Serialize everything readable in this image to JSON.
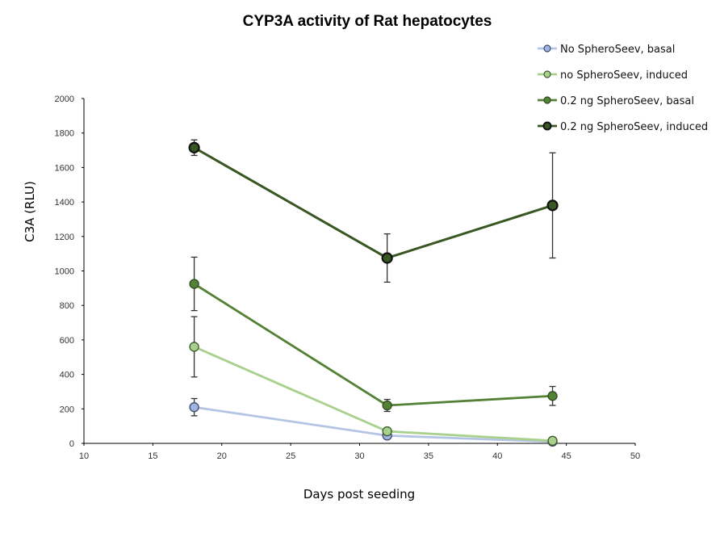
{
  "chart_data": {
    "type": "line",
    "title": "CYP3A activity of Rat hepatocytes",
    "xlabel": "Days post seeding",
    "ylabel": "C3A (RLU)",
    "xlim": [
      10,
      50
    ],
    "ylim": [
      0,
      2000
    ],
    "xticks": [
      10,
      15,
      20,
      25,
      30,
      35,
      40,
      45,
      50
    ],
    "yticks": [
      0,
      200,
      400,
      600,
      800,
      1000,
      1200,
      1400,
      1600,
      1800,
      2000
    ],
    "grid": false,
    "legend_position": "top-right",
    "series": [
      {
        "name": "No SpheroSeev, basal",
        "color": "#b4c4e4",
        "marker_fill": "#9fb4e0",
        "marker_stroke": "#3b4a6b",
        "x": [
          18,
          32,
          44
        ],
        "y": [
          210,
          45,
          10
        ],
        "error": [
          50,
          0,
          0
        ]
      },
      {
        "name": "no SpheroSeev, induced",
        "color": "#a9d18e",
        "marker_fill": "#a9d18e",
        "marker_stroke": "#3a5a2a",
        "x": [
          18,
          32,
          44
        ],
        "y": [
          560,
          70,
          15
        ],
        "error": [
          175,
          0,
          0
        ]
      },
      {
        "name": "0.2 ng SpheroSeev, basal",
        "color": "#538135",
        "marker_fill": "#538135",
        "marker_stroke": "#2e4a1e",
        "x": [
          18,
          32,
          44
        ],
        "y": [
          925,
          220,
          275
        ],
        "error": [
          155,
          35,
          55
        ]
      },
      {
        "name": "0.2 ng SpheroSeev, induced",
        "color": "#385723",
        "marker_fill": "#385723",
        "marker_stroke": "#111111",
        "x": [
          18,
          32,
          44
        ],
        "y": [
          1715,
          1075,
          1380
        ],
        "error": [
          45,
          140,
          305
        ]
      }
    ]
  }
}
